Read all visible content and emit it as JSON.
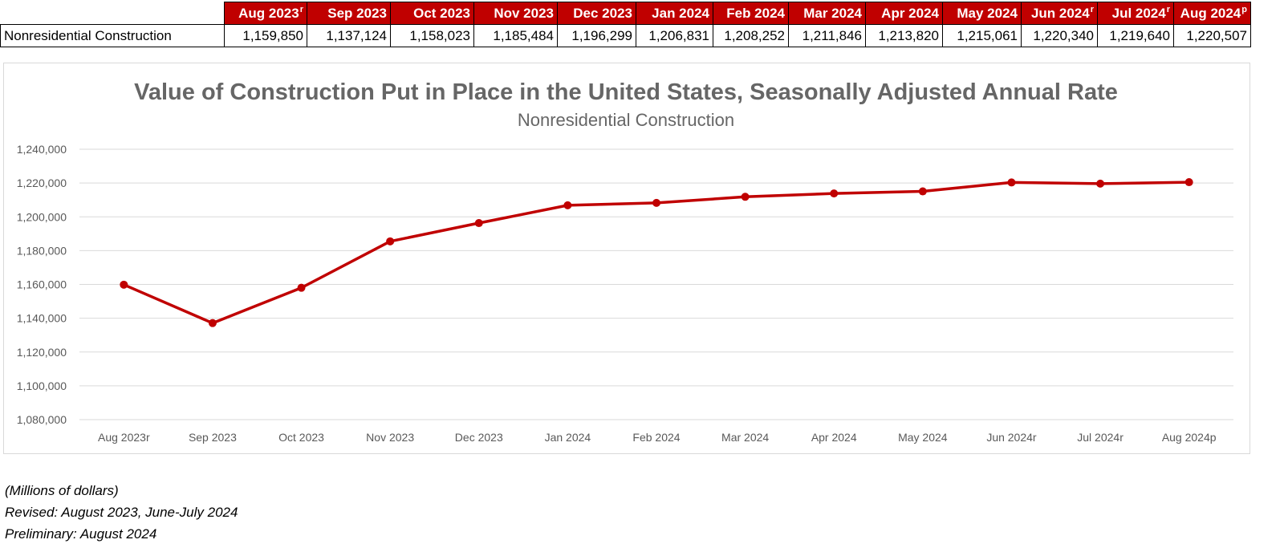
{
  "table": {
    "headers": [
      {
        "label": "Aug 2023",
        "mark": "r"
      },
      {
        "label": "Sep 2023",
        "mark": ""
      },
      {
        "label": "Oct 2023",
        "mark": ""
      },
      {
        "label": "Nov 2023",
        "mark": ""
      },
      {
        "label": "Dec 2023",
        "mark": ""
      },
      {
        "label": "Jan 2024",
        "mark": ""
      },
      {
        "label": "Feb 2024",
        "mark": ""
      },
      {
        "label": "Mar 2024",
        "mark": ""
      },
      {
        "label": "Apr 2024",
        "mark": ""
      },
      {
        "label": "May 2024",
        "mark": ""
      },
      {
        "label": "Jun 2024",
        "mark": "r"
      },
      {
        "label": "Jul 2024",
        "mark": "r"
      },
      {
        "label": "Aug 2024",
        "mark": "p"
      }
    ],
    "row_label": "Nonresidential Construction",
    "values": [
      "1,159,850",
      "1,137,124",
      "1,158,023",
      "1,185,484",
      "1,196,299",
      "1,206,831",
      "1,208,252",
      "1,211,846",
      "1,213,820",
      "1,215,061",
      "1,220,340",
      "1,219,640",
      "1,220,507"
    ]
  },
  "chart_data": {
    "type": "line",
    "title": "Value of Construction Put in Place in the United States, Seasonally Adjusted Annual Rate",
    "subtitle": "Nonresidential Construction",
    "categories": [
      "Aug 2023r",
      "Sep 2023",
      "Oct 2023",
      "Nov 2023",
      "Dec 2023",
      "Jan 2024",
      "Feb 2024",
      "Mar 2024",
      "Apr 2024",
      "May 2024",
      "Jun 2024r",
      "Jul 2024r",
      "Aug 2024p"
    ],
    "series": [
      {
        "values": [
          1159850,
          1137124,
          1158023,
          1185484,
          1196299,
          1206831,
          1208252,
          1211846,
          1213820,
          1215061,
          1220340,
          1219640,
          1220507
        ],
        "color": "#c00000"
      }
    ],
    "ylim": [
      1080000,
      1240000
    ],
    "yticks": [
      1080000,
      1100000,
      1120000,
      1140000,
      1160000,
      1180000,
      1200000,
      1220000,
      1240000
    ],
    "ytick_labels": [
      "1,080,000",
      "1,100,000",
      "1,120,000",
      "1,140,000",
      "1,160,000",
      "1,180,000",
      "1,200,000",
      "1,220,000",
      "1,240,000"
    ],
    "grid": true,
    "legend": "none"
  },
  "notes": {
    "units": "(Millions of dollars)",
    "revised": "Revised: August 2023, June-July 2024",
    "preliminary": "Preliminary: August 2024"
  }
}
